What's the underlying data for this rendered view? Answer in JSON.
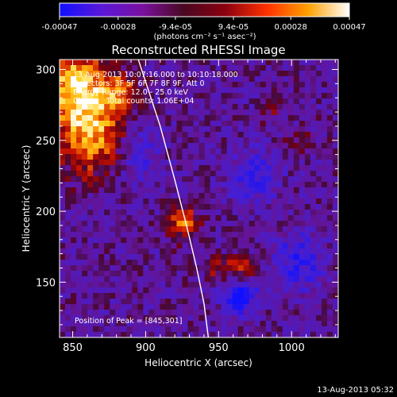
{
  "colorbar": {
    "tick_labels": [
      "-0.00047",
      "-0.00028",
      "-9.4e-05",
      "9.4e-05",
      "0.00028",
      "0.00047"
    ],
    "units_label": "(photons cm⁻² s⁻¹ asec⁻²)",
    "range": [
      -0.00047,
      0.00047
    ],
    "colors": [
      "#1010ff",
      "#5a18d8",
      "#7a10a0",
      "#4a0820",
      "#8a0010",
      "#ff3000",
      "#ffa000",
      "#ffffff"
    ]
  },
  "chart_data": {
    "type": "heatmap",
    "title": "Reconstructed RHESSI Image",
    "xlabel": "Heliocentric X (arcsec)",
    "ylabel": "Heliocentric Y (arcsec)",
    "xlim": [
      841,
      1032
    ],
    "ylim": [
      111,
      307
    ],
    "x_ticks": [
      850,
      900,
      950,
      1000
    ],
    "y_ticks": [
      150,
      200,
      250,
      300
    ],
    "annotations": [
      "13-Aug-2013 10:07:16.000 to 10:10:18.000",
      "Detectors: 3F 5F 6F 7F 8F 9F, Att 0",
      "Energy Range: 12.0 - 25.0 keV",
      "Clean     Total counts: 1.06E+04"
    ],
    "peak_label": "Position of Peak = [845,301]",
    "peak_position": [
      845,
      301
    ],
    "limb_points": [
      [
        895,
        307
      ],
      [
        910,
        260
      ],
      [
        920,
        222
      ],
      [
        928,
        190
      ],
      [
        935,
        160
      ],
      [
        940,
        135
      ],
      [
        943,
        111
      ]
    ],
    "sources": [
      {
        "x": 852,
        "y": 290,
        "sx": 14,
        "sy": 17,
        "amp": 1.0
      },
      {
        "x": 862,
        "y": 255,
        "sx": 16,
        "sy": 20,
        "amp": 0.92
      },
      {
        "x": 883,
        "y": 285,
        "sx": 9,
        "sy": 9,
        "amp": 0.65
      },
      {
        "x": 926,
        "y": 192,
        "sx": 8,
        "sy": 8,
        "amp": 0.7
      },
      {
        "x": 963,
        "y": 160,
        "sx": 9,
        "sy": 6,
        "amp": 0.55
      },
      {
        "x": 946,
        "y": 160,
        "sx": 6,
        "sy": 5,
        "amp": 0.35
      },
      {
        "x": 1005,
        "y": 248,
        "sx": 6,
        "sy": 6,
        "amp": 0.3
      },
      {
        "x": 985,
        "y": 270,
        "sx": 5,
        "sy": 5,
        "amp": 0.25
      }
    ],
    "negative_regions": [
      {
        "x": 965,
        "y": 140,
        "sx": 9,
        "sy": 9,
        "amp": 0.7
      },
      {
        "x": 1005,
        "y": 165,
        "sx": 12,
        "sy": 14,
        "amp": 0.55
      },
      {
        "x": 975,
        "y": 225,
        "sx": 12,
        "sy": 14,
        "amp": 0.45
      },
      {
        "x": 895,
        "y": 240,
        "sx": 10,
        "sy": 14,
        "amp": 0.4
      }
    ]
  },
  "footer_timestamp": "13-Aug-2013 05:32"
}
